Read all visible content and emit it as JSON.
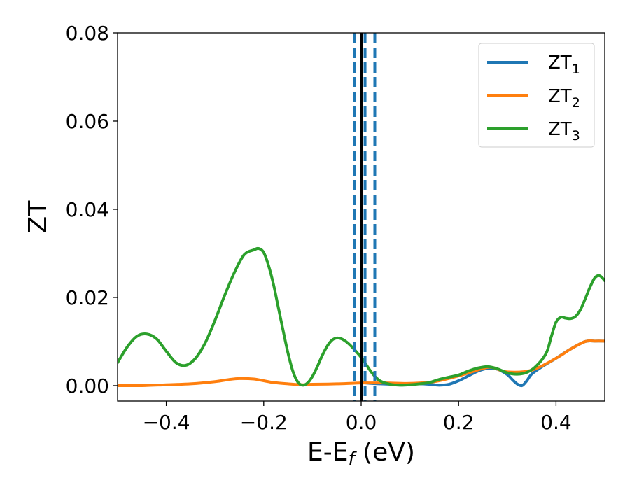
{
  "chart_data": {
    "type": "line",
    "xlabel": "E-E",
    "xlabel_sub": "f",
    "xlabel_unit": "(eV)",
    "ylabel": "ZT",
    "xlim": [
      -0.5,
      0.5
    ],
    "ylim": [
      -0.0035,
      0.08
    ],
    "xticks": [
      -0.4,
      -0.2,
      0.0,
      0.2,
      0.4
    ],
    "xtick_labels": [
      "−0.4",
      "−0.2",
      "0.0",
      "0.2",
      "0.4"
    ],
    "yticks": [
      0.0,
      0.02,
      0.04,
      0.06,
      0.08
    ],
    "ytick_labels": [
      "0.00",
      "0.02",
      "0.04",
      "0.06",
      "0.08"
    ],
    "grid": false,
    "legend_position": "top-right",
    "vlines": [
      {
        "x": 0.0,
        "style": "solid",
        "color": "#000000"
      },
      {
        "x": -0.014,
        "style": "dashed",
        "color": "#1f77b4"
      },
      {
        "x": 0.008,
        "style": "dashed",
        "color": "#1f77b4"
      },
      {
        "x": 0.028,
        "style": "dashed",
        "color": "#1f77b4"
      }
    ],
    "series": [
      {
        "name": "ZT",
        "name_sub": "1",
        "color": "#1f77b4",
        "x": [
          0.0,
          0.02,
          0.04,
          0.06,
          0.08,
          0.1,
          0.12,
          0.14,
          0.16,
          0.18,
          0.2,
          0.22,
          0.24,
          0.26,
          0.28,
          0.3,
          0.31,
          0.32,
          0.33,
          0.34,
          0.35,
          0.37,
          0.4,
          0.43,
          0.46,
          0.48,
          0.5
        ],
        "y": [
          0.0007,
          0.0005,
          0.0004,
          0.0003,
          0.0002,
          0.0003,
          0.0004,
          0.0003,
          0.0001,
          0.0003,
          0.0011,
          0.0022,
          0.0033,
          0.0039,
          0.0037,
          0.0025,
          0.0014,
          0.0004,
          0.0,
          0.0011,
          0.0026,
          0.0042,
          0.0062,
          0.0083,
          0.01,
          0.0101,
          0.0101
        ]
      },
      {
        "name": "ZT",
        "name_sub": "2",
        "color": "#ff7f0e",
        "x": [
          -0.5,
          -0.45,
          -0.4,
          -0.35,
          -0.3,
          -0.27,
          -0.25,
          -0.22,
          -0.2,
          -0.18,
          -0.15,
          -0.12,
          -0.1,
          -0.05,
          0.0,
          0.05,
          0.1,
          0.15,
          0.2,
          0.25,
          0.27,
          0.3,
          0.35,
          0.4,
          0.43,
          0.46,
          0.48,
          0.5
        ],
        "y": [
          0.0,
          0.0,
          0.0002,
          0.0004,
          0.0009,
          0.0014,
          0.0016,
          0.0015,
          0.0011,
          0.0007,
          0.0004,
          0.0002,
          0.0003,
          0.0004,
          0.0006,
          0.0006,
          0.0005,
          0.0009,
          0.0022,
          0.0039,
          0.0041,
          0.0031,
          0.0035,
          0.0062,
          0.0083,
          0.01,
          0.0101,
          0.0101
        ]
      },
      {
        "name": "ZT",
        "name_sub": "3",
        "color": "#2ca02c",
        "x": [
          -0.5,
          -0.48,
          -0.46,
          -0.44,
          -0.42,
          -0.4,
          -0.38,
          -0.36,
          -0.34,
          -0.32,
          -0.3,
          -0.28,
          -0.26,
          -0.24,
          -0.22,
          -0.21,
          -0.2,
          -0.19,
          -0.18,
          -0.17,
          -0.16,
          -0.15,
          -0.14,
          -0.13,
          -0.12,
          -0.11,
          -0.1,
          -0.09,
          -0.08,
          -0.07,
          -0.06,
          -0.05,
          -0.04,
          -0.03,
          -0.02,
          -0.01,
          0.0,
          0.01,
          0.02,
          0.03,
          0.04,
          0.06,
          0.08,
          0.1,
          0.12,
          0.14,
          0.16,
          0.18,
          0.2,
          0.22,
          0.24,
          0.26,
          0.28,
          0.3,
          0.32,
          0.34,
          0.36,
          0.38,
          0.39,
          0.4,
          0.41,
          0.42,
          0.43,
          0.44,
          0.45,
          0.46,
          0.47,
          0.48,
          0.49,
          0.5
        ],
        "y": [
          0.0052,
          0.0088,
          0.0112,
          0.0117,
          0.0106,
          0.0078,
          0.0052,
          0.0046,
          0.0062,
          0.0097,
          0.0148,
          0.0205,
          0.0257,
          0.0297,
          0.0308,
          0.0311,
          0.0302,
          0.0272,
          0.023,
          0.0177,
          0.0124,
          0.0073,
          0.0032,
          0.0008,
          0.0001,
          0.0006,
          0.0021,
          0.0043,
          0.0068,
          0.0089,
          0.0103,
          0.0108,
          0.0106,
          0.0099,
          0.0089,
          0.0077,
          0.0064,
          0.0048,
          0.0032,
          0.0019,
          0.001,
          0.0003,
          0.0001,
          0.0002,
          0.0004,
          0.0007,
          0.0014,
          0.0019,
          0.0024,
          0.0033,
          0.004,
          0.0043,
          0.0038,
          0.0029,
          0.0026,
          0.003,
          0.0045,
          0.0074,
          0.011,
          0.0144,
          0.0155,
          0.0153,
          0.0152,
          0.0157,
          0.0172,
          0.0197,
          0.0224,
          0.0245,
          0.0249,
          0.0238
        ]
      }
    ]
  }
}
